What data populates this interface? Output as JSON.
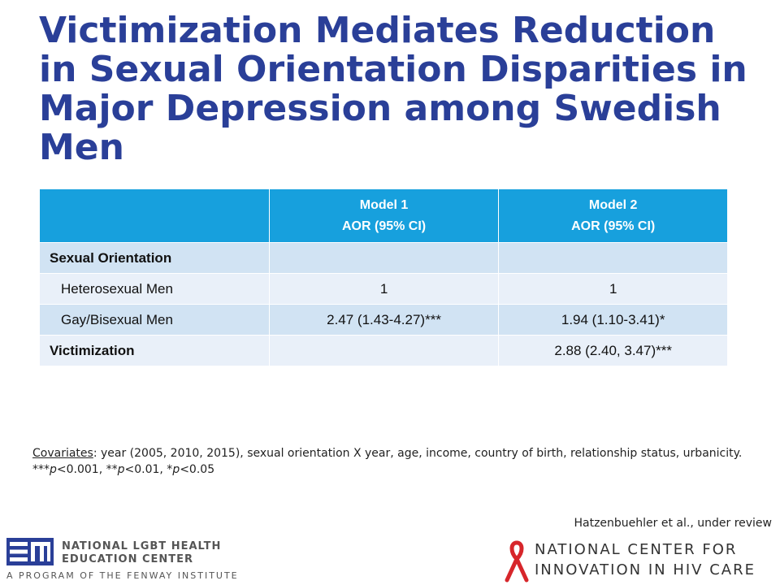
{
  "slide": {
    "title": "Victimization Mediates Reduction in Sexual Orientation Disparities in Major Depression among Swedish Men"
  },
  "table": {
    "headers": [
      {
        "line1": "",
        "line2": ""
      },
      {
        "line1": "Model 1",
        "line2": "AOR (95% CI)"
      },
      {
        "line1": "Model 2",
        "line2": "AOR (95% CI)"
      }
    ],
    "rows": [
      {
        "label": "Sexual Orientation",
        "model1": "",
        "model2": ""
      },
      {
        "label": "Heterosexual Men",
        "model1": "1",
        "model2": "1"
      },
      {
        "label": "Gay/Bisexual Men",
        "model1": "2.47 (1.43-4.27)***",
        "model2": "1.94 (1.10-3.41)*"
      },
      {
        "label": "Victimization",
        "model1": "",
        "model2": "2.88 (2.40, 3.47)***"
      }
    ]
  },
  "notes": {
    "covariates_label": "Covariates",
    "covariates_text": ": year (2005, 2010, 2015), sexual orientation X year, age, income, country of birth, relationship status, urbanicity.",
    "sig1_stars": "***",
    "sig1_rest": "<0.001, **",
    "sig2_rest": "<0.01, *",
    "sig3_rest": "<0.05",
    "p": "p"
  },
  "citation": "Hatzenbuehler et al., under review",
  "footer": {
    "left_logo": {
      "line1": "NATIONAL LGBT HEALTH",
      "line2": "EDUCATION CENTER",
      "tagline": "A PROGRAM OF THE FENWAY INSTITUTE",
      "mark_color": "#2a3f98"
    },
    "right_logo": {
      "line1": "NATIONAL CENTER FOR",
      "line2": "INNOVATION IN HIV CARE",
      "ribbon_color": "#d7262b"
    }
  }
}
